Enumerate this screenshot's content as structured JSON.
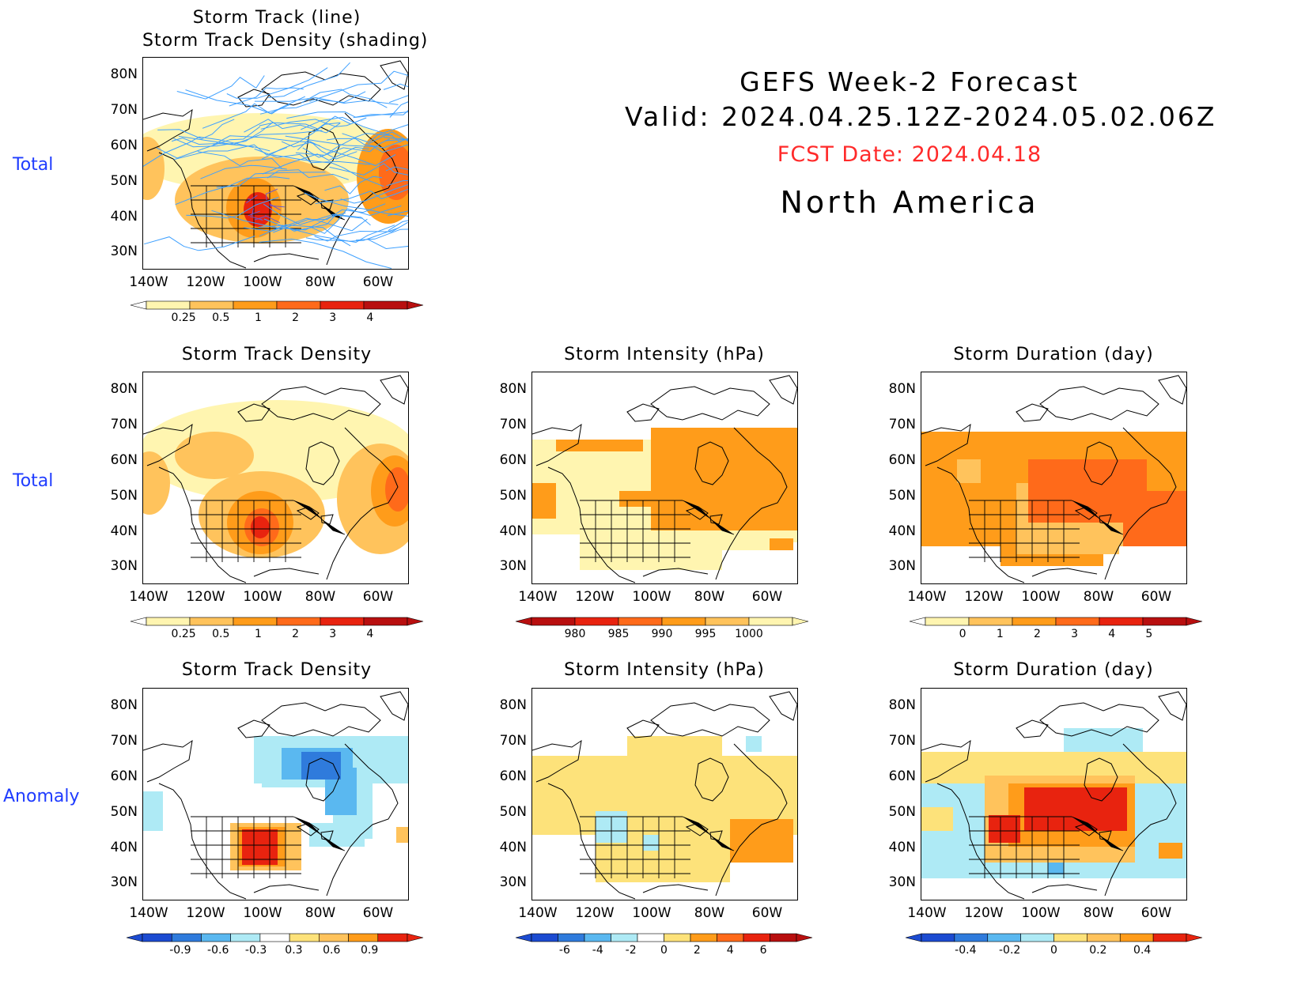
{
  "header": {
    "title": "GEFS Week-2 Forecast",
    "valid": "Valid: 2024.04.25.12Z-2024.05.02.06Z",
    "fcst_date": "FCST Date: 2024.04.18",
    "region": "North America"
  },
  "row_labels": {
    "row1": "Total",
    "row2": "Total",
    "row3": "Anomaly"
  },
  "axes": {
    "lat_ticks": [
      "80N",
      "70N",
      "60N",
      "50N",
      "40N",
      "30N"
    ],
    "lon_ticks": [
      "140W",
      "120W",
      "100W",
      "80W",
      "60W"
    ]
  },
  "colors": {
    "track_line": "#3ea0ff",
    "pale_yellow": "#fff5b0",
    "light_orange": "#ffc35c",
    "orange": "#ff9c1a",
    "dark_orange": "#ff6a1a",
    "red": "#e8230f",
    "dark_red": "#b80f0f",
    "light_blue": "#aeeaf5",
    "mid_blue": "#5ab8f0",
    "blue": "#2f7bdc",
    "dark_blue": "#1c4bd1"
  },
  "panels": {
    "p1": {
      "title_line1": "Storm Track (line)",
      "title_line2": "Storm Track Density (shading)"
    },
    "p2": {
      "title": "Storm Track Density"
    },
    "p3": {
      "title": "Storm Intensity (hPa)"
    },
    "p4": {
      "title": "Storm Duration (day)"
    },
    "p5": {
      "title": "Storm Track Density"
    },
    "p6": {
      "title": "Storm Intensity (hPa)"
    },
    "p7": {
      "title": "Storm Duration (day)"
    }
  },
  "colorbars": {
    "density": {
      "labels": [
        "0.25",
        "0.5",
        "1",
        "2",
        "3",
        "4"
      ],
      "colors": [
        "#fff5b0",
        "#ffc35c",
        "#ff9c1a",
        "#ff6a1a",
        "#e8230f",
        "#b80f0f"
      ]
    },
    "intensity": {
      "labels": [
        "980",
        "985",
        "990",
        "995",
        "1000"
      ],
      "colors": [
        "#b80f0f",
        "#e8230f",
        "#ff6a1a",
        "#ff9c1a",
        "#ffc35c",
        "#fff5b0"
      ]
    },
    "duration": {
      "labels": [
        "0",
        "1",
        "2",
        "3",
        "4",
        "5"
      ],
      "colors": [
        "#fff5b0",
        "#ffc35c",
        "#ff9c1a",
        "#ff6a1a",
        "#e8230f",
        "#b80f0f"
      ]
    },
    "density_anom": {
      "labels": [
        "-0.9",
        "-0.6",
        "-0.3",
        "0.3",
        "0.6",
        "0.9"
      ],
      "colors": [
        "#1c4bd1",
        "#2f7bdc",
        "#5ab8f0",
        "#aeeaf5",
        "#ffffff",
        "#fde27a",
        "#ffc35c",
        "#ff9c1a",
        "#e8230f"
      ]
    },
    "intensity_anom": {
      "labels": [
        "-6",
        "-4",
        "-2",
        "0",
        "2",
        "4",
        "6"
      ],
      "colors": [
        "#1c4bd1",
        "#2f7bdc",
        "#5ab8f0",
        "#aeeaf5",
        "#ffffff",
        "#fde27a",
        "#ff9c1a",
        "#ff6a1a",
        "#e8230f",
        "#b80f0f"
      ]
    },
    "duration_anom": {
      "labels": [
        "-0.4",
        "-0.2",
        "0",
        "0.2",
        "0.4"
      ],
      "colors": [
        "#1c4bd1",
        "#2f7bdc",
        "#5ab8f0",
        "#aeeaf5",
        "#fde27a",
        "#ffc35c",
        "#ff9c1a",
        "#e8230f"
      ]
    }
  }
}
